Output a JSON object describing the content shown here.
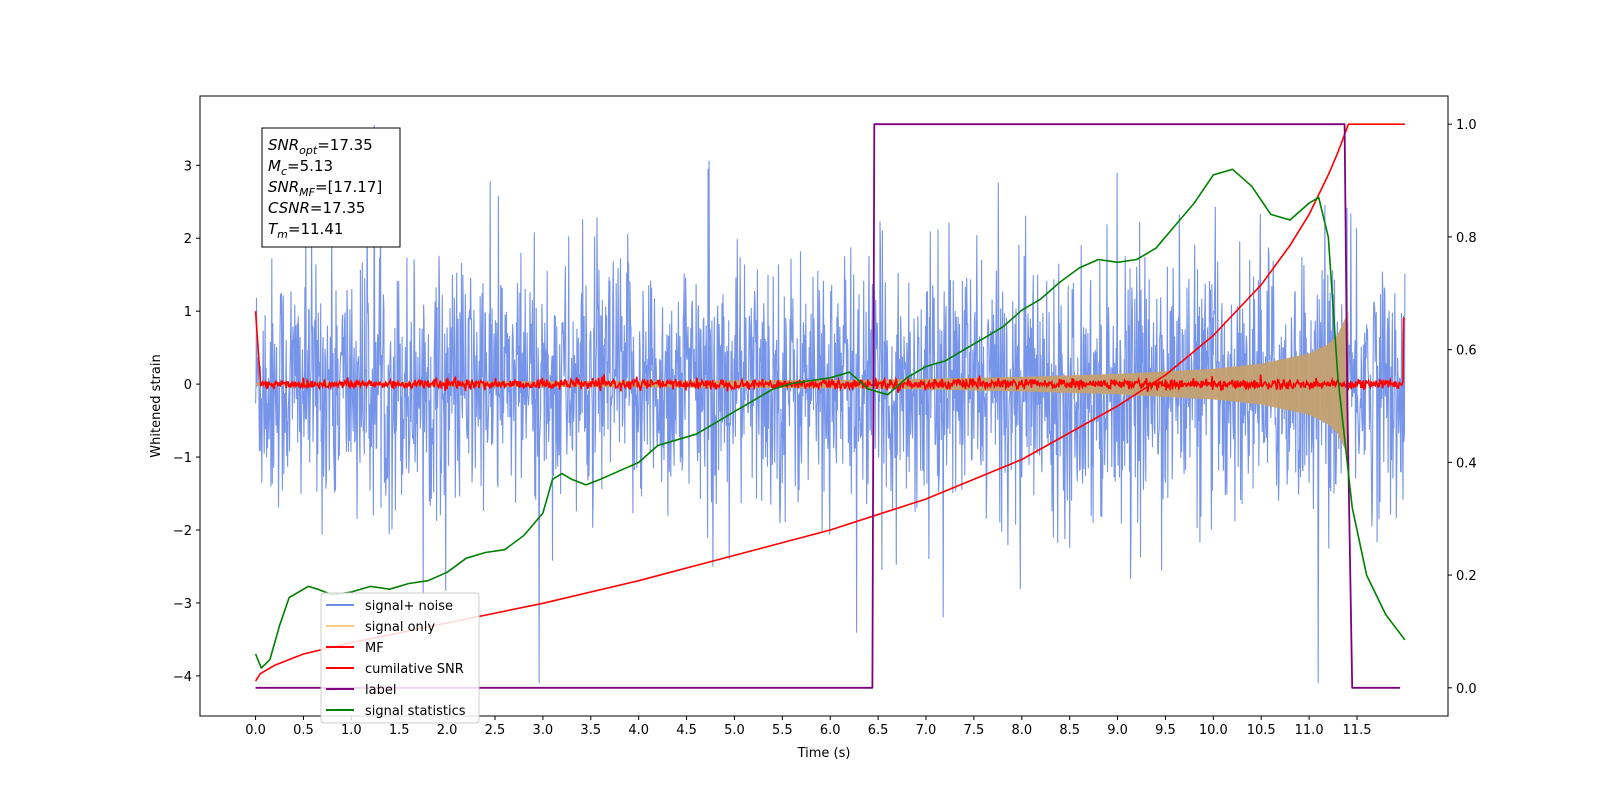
{
  "chart_data": {
    "type": "line",
    "xlabel": "Time (s)",
    "ylabel": "Whitened strain",
    "xlim": [
      -0.58,
      12.45
    ],
    "ylim": [
      -4.55,
      3.95
    ],
    "y2lim": [
      -0.05,
      1.05
    ],
    "xticks": [
      "0.0",
      "0.5",
      "1.0",
      "1.5",
      "2.0",
      "2.5",
      "3.0",
      "3.5",
      "4.0",
      "4.5",
      "5.0",
      "5.5",
      "6.0",
      "6.5",
      "7.0",
      "7.5",
      "8.0",
      "8.5",
      "9.0",
      "9.5",
      "10.0",
      "10.5",
      "11.0",
      "11.5"
    ],
    "yticks": [
      -4,
      -3,
      -2,
      -1,
      0,
      1,
      2,
      3
    ],
    "y2ticks": [
      "0.0",
      "0.2",
      "0.4",
      "0.6",
      "0.8",
      "1.0"
    ],
    "annotation": {
      "lines": [
        {
          "sym": "SNR",
          "sub": "opt",
          "val": "=17.35"
        },
        {
          "sym": "M",
          "sub": "c",
          "val": "=5.13"
        },
        {
          "sym": "SNR",
          "sub": "MF",
          "val": "=[17.17]"
        },
        {
          "sym": "CSNR",
          "sub": "",
          "val": "=17.35"
        },
        {
          "sym": "T",
          "sub": "m",
          "val": "=11.41"
        }
      ]
    },
    "legend": {
      "placement": "lower-left",
      "items": [
        {
          "label": "signal+ noise",
          "color": "#6f8ee8"
        },
        {
          "label": "signal only",
          "color": "#ffcc80"
        },
        {
          "label": "MF",
          "color": "#ff0000"
        },
        {
          "label": "cumilative SNR",
          "color": "#ff0000"
        },
        {
          "label": "label",
          "color": "#800080"
        },
        {
          "label": "signal statistics",
          "color": "#008000"
        }
      ]
    },
    "series": [
      {
        "name": "signal+ noise",
        "axis": "left",
        "color": "#6f8ee8",
        "band_sigma": 0.85,
        "range": [
          0.0,
          12.0
        ]
      },
      {
        "name": "signal only",
        "axis": "left",
        "color": "#c4a070",
        "envelope": {
          "x": [
            0.0,
            6.5,
            8.0,
            9.0,
            10.0,
            10.5,
            11.0,
            11.2,
            11.3,
            11.41
          ],
          "amp": [
            0.02,
            0.06,
            0.1,
            0.14,
            0.21,
            0.28,
            0.42,
            0.55,
            0.68,
            1.0
          ]
        }
      },
      {
        "name": "MF",
        "axis": "left",
        "color": "#ff0000",
        "noise_sigma": 0.035,
        "range": [
          0.0,
          12.0
        ]
      },
      {
        "name": "cumilative SNR",
        "axis": "right",
        "color": "#ff0000",
        "x": [
          0.0,
          0.05,
          0.2,
          0.5,
          1.0,
          2.0,
          3.0,
          4.0,
          5.0,
          6.0,
          7.0,
          8.0,
          9.0,
          9.5,
          10.0,
          10.5,
          10.8,
          11.0,
          11.2,
          11.3,
          11.41,
          12.0
        ],
        "y": [
          0.012,
          0.025,
          0.04,
          0.06,
          0.08,
          0.115,
          0.15,
          0.19,
          0.235,
          0.28,
          0.335,
          0.405,
          0.5,
          0.555,
          0.625,
          0.715,
          0.785,
          0.84,
          0.91,
          0.95,
          1.0,
          1.0
        ]
      },
      {
        "name": "label",
        "axis": "right",
        "color": "#800080",
        "x": [
          0.0,
          6.44,
          6.46,
          11.37,
          11.4,
          11.45,
          11.95
        ],
        "y": [
          0.0,
          0.0,
          1.0,
          1.0,
          0.5,
          0.0,
          0.0
        ]
      },
      {
        "name": "signal statistics",
        "axis": "right",
        "color": "#008000",
        "x": [
          0.0,
          0.06,
          0.15,
          0.25,
          0.35,
          0.45,
          0.55,
          0.65,
          0.8,
          1.0,
          1.2,
          1.4,
          1.6,
          1.8,
          2.0,
          2.2,
          2.4,
          2.6,
          2.8,
          3.0,
          3.1,
          3.2,
          3.3,
          3.45,
          3.6,
          3.8,
          4.0,
          4.2,
          4.4,
          4.6,
          4.8,
          5.0,
          5.2,
          5.4,
          5.6,
          5.8,
          6.0,
          6.2,
          6.4,
          6.6,
          6.8,
          7.0,
          7.2,
          7.4,
          7.6,
          7.8,
          8.0,
          8.2,
          8.4,
          8.6,
          8.8,
          9.0,
          9.2,
          9.4,
          9.6,
          9.8,
          10.0,
          10.1,
          10.2,
          10.4,
          10.6,
          10.8,
          11.0,
          11.1,
          11.2,
          11.3,
          11.45,
          11.6,
          11.8,
          12.0
        ],
        "y": [
          0.06,
          0.035,
          0.05,
          0.11,
          0.16,
          0.17,
          0.18,
          0.175,
          0.165,
          0.17,
          0.18,
          0.175,
          0.185,
          0.19,
          0.205,
          0.23,
          0.24,
          0.245,
          0.27,
          0.31,
          0.37,
          0.38,
          0.37,
          0.36,
          0.37,
          0.385,
          0.4,
          0.43,
          0.44,
          0.45,
          0.47,
          0.49,
          0.51,
          0.53,
          0.54,
          0.545,
          0.55,
          0.56,
          0.53,
          0.52,
          0.55,
          0.57,
          0.58,
          0.6,
          0.62,
          0.64,
          0.67,
          0.69,
          0.72,
          0.745,
          0.76,
          0.755,
          0.76,
          0.78,
          0.82,
          0.86,
          0.91,
          0.915,
          0.92,
          0.89,
          0.84,
          0.83,
          0.86,
          0.87,
          0.8,
          0.55,
          0.32,
          0.2,
          0.13,
          0.085
        ]
      }
    ]
  }
}
